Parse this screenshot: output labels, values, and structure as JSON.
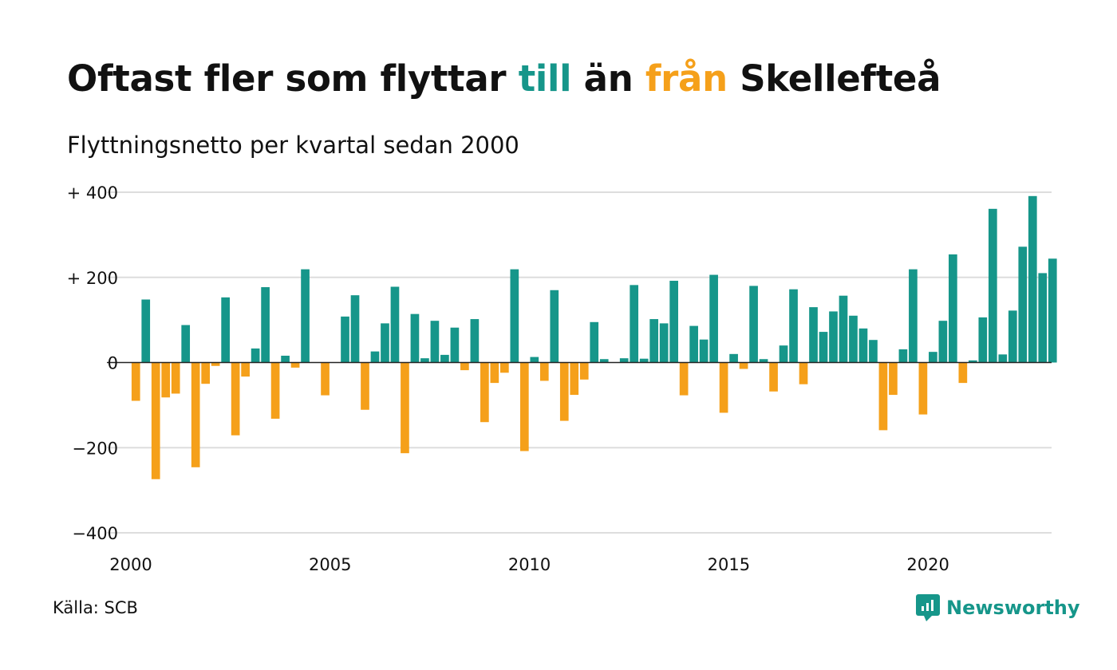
{
  "title": {
    "part1": "Oftast fler som flyttar ",
    "part2": "till",
    "part3": " än ",
    "part4": "från",
    "part5": " Skellefteå"
  },
  "subtitle": "Flyttningsnetto per kvartal sedan 2000",
  "source": "Källa: SCB",
  "logo": {
    "name": "Newsworthy",
    "icon": "newsworthy-logo-icon"
  },
  "colors": {
    "positive": "#16968a",
    "negative": "#f5a01a",
    "text": "#111111",
    "grid": "#dddddd"
  },
  "chart_data": {
    "type": "bar",
    "title": "Oftast fler som flyttar till än från Skellefteå",
    "subtitle": "Flyttningsnetto per kvartal sedan 2000",
    "x_start": 2000,
    "x_step": 0.25,
    "xlim": [
      2000,
      2023.1
    ],
    "x_ticks": [
      2000,
      2005,
      2010,
      2015,
      2020
    ],
    "y_ticks": [
      {
        "value": 400,
        "label": "+ 400"
      },
      {
        "value": 200,
        "label": "+ 200"
      },
      {
        "value": 0,
        "label": "0"
      },
      {
        "value": -200,
        "label": "−200"
      },
      {
        "value": -400,
        "label": "−400"
      }
    ],
    "ylim": [
      -400,
      400
    ],
    "grid": true,
    "values": [
      -90,
      148,
      -274,
      -82,
      -73,
      88,
      -246,
      -50,
      -8,
      153,
      -171,
      -33,
      33,
      177,
      -132,
      16,
      -12,
      219,
      0,
      -77,
      0,
      108,
      158,
      -111,
      26,
      92,
      178,
      -213,
      114,
      10,
      98,
      18,
      82,
      -18,
      102,
      -140,
      -48,
      -24,
      219,
      -208,
      13,
      -43,
      170,
      -137,
      -76,
      -40,
      95,
      8,
      0,
      10,
      182,
      9,
      102,
      92,
      192,
      -77,
      86,
      54,
      206,
      -118,
      20,
      -15,
      180,
      8,
      -68,
      40,
      172,
      -51,
      130,
      72,
      120,
      157,
      110,
      80,
      53,
      -159,
      -76,
      31,
      219,
      -122,
      25,
      98,
      254,
      -48,
      5,
      106,
      361,
      19,
      122,
      272,
      391,
      210,
      244
    ]
  }
}
